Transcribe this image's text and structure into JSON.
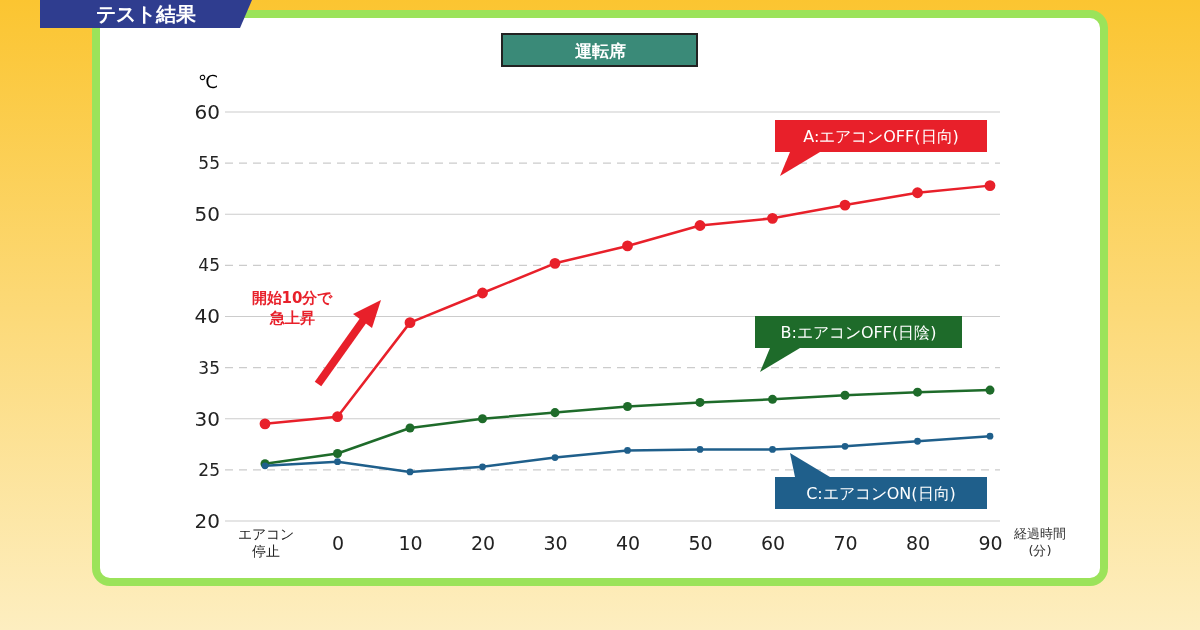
{
  "chart_data": {
    "type": "line",
    "title": "運転席",
    "subtitle": "テスト結果",
    "ylabel": "℃",
    "xlabel": "経過時間(分)",
    "categories": [
      "エアコン停止",
      "0",
      "10",
      "20",
      "30",
      "40",
      "50",
      "60",
      "70",
      "80",
      "90"
    ],
    "series": [
      {
        "name": "A:エアコンOFF(日向)",
        "color": "#e8202a",
        "values": [
          29.5,
          30.2,
          39.4,
          42.3,
          45.2,
          46.9,
          48.9,
          49.6,
          50.9,
          52.1,
          52.8
        ]
      },
      {
        "name": "B:エアコンOFF(日陰)",
        "color": "#1e6b2a",
        "values": [
          25.6,
          26.6,
          29.1,
          30.0,
          30.6,
          31.2,
          31.6,
          31.9,
          32.3,
          32.6,
          32.8
        ]
      },
      {
        "name": "C:エアコンON(日向)",
        "color": "#1f5f8b",
        "values": [
          25.4,
          25.8,
          24.8,
          25.3,
          26.2,
          26.9,
          27.0,
          27.0,
          27.3,
          27.8,
          28.3
        ]
      }
    ],
    "ylim": [
      20,
      60
    ],
    "yticks": [
      20,
      25,
      30,
      35,
      40,
      45,
      50,
      55,
      60
    ],
    "grid": "y",
    "marker": "circle",
    "line_style": "solid",
    "legend": "right",
    "annotations": [
      "開始10分で急上昇"
    ]
  }
}
